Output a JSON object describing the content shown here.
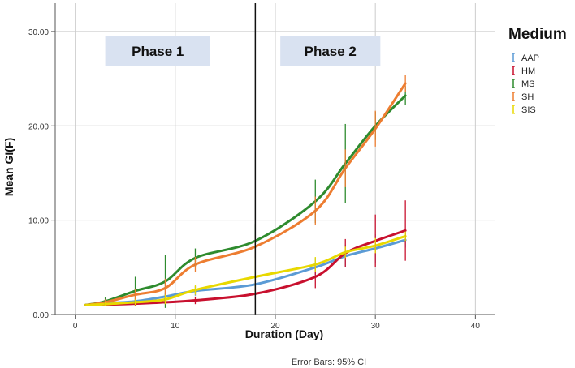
{
  "chart_data": {
    "type": "line",
    "xlabel": "Duration (Day)",
    "ylabel": "Mean GI(F)",
    "xlim": [
      -2,
      42
    ],
    "ylim": [
      0,
      33
    ],
    "xticks": [
      0,
      10,
      20,
      30,
      40
    ],
    "yticks": [
      0,
      10,
      20,
      30
    ],
    "ytick_labels": [
      "0.00",
      "10.00",
      "20.00",
      "30.00"
    ],
    "grid": true,
    "vline_x": 18,
    "phases": [
      {
        "label": "Phase 1",
        "x_start": 3,
        "x_end": 13.5
      },
      {
        "label": "Phase 2",
        "x_start": 20.5,
        "x_end": 30.5
      }
    ],
    "legend": {
      "title": "Medium",
      "placement": "right"
    },
    "footnote": "Error Bars: 95% CI",
    "x": [
      1,
      3,
      6,
      9,
      12,
      18,
      24,
      27,
      30,
      33
    ],
    "series": [
      {
        "name": "AAP",
        "color": "#5b9bd5",
        "values": [
          1.0,
          1.2,
          1.4,
          1.9,
          2.5,
          3.2,
          5.0,
          6.2,
          7.0,
          7.9
        ],
        "err": [
          0.1,
          0.2,
          0.3,
          0.4,
          0.5,
          0.8,
          1.0,
          1.2,
          1.5,
          0.8
        ]
      },
      {
        "name": "HM",
        "color": "#c8102e",
        "values": [
          1.0,
          1.05,
          1.15,
          1.3,
          1.5,
          2.2,
          4.0,
          6.5,
          7.8,
          8.9
        ],
        "err": [
          0.1,
          0.1,
          0.2,
          0.2,
          0.4,
          0.6,
          1.2,
          1.5,
          2.8,
          3.2
        ]
      },
      {
        "name": "MS",
        "color": "#2e8b2e",
        "values": [
          1.0,
          1.4,
          2.5,
          3.5,
          6.0,
          7.8,
          12.0,
          16.0,
          20.0,
          23.2
        ],
        "err": [
          0.1,
          0.4,
          1.5,
          2.8,
          1.0,
          1.8,
          2.3,
          4.2,
          1.5,
          1.0
        ]
      },
      {
        "name": "SH",
        "color": "#ed7d31",
        "values": [
          1.0,
          1.3,
          2.1,
          2.8,
          5.3,
          7.2,
          11.0,
          15.5,
          19.7,
          24.5
        ],
        "err": [
          0.1,
          0.3,
          0.6,
          1.0,
          0.8,
          1.2,
          1.5,
          2.0,
          1.9,
          0.9
        ]
      },
      {
        "name": "SIS",
        "color": "#e8d800",
        "values": [
          1.0,
          1.1,
          1.3,
          1.6,
          2.6,
          4.0,
          5.3,
          6.6,
          7.3,
          8.3
        ],
        "err": [
          0.1,
          0.2,
          0.3,
          0.5,
          0.5,
          2.0,
          0.8,
          0.6,
          0.8,
          0.5
        ]
      }
    ]
  }
}
